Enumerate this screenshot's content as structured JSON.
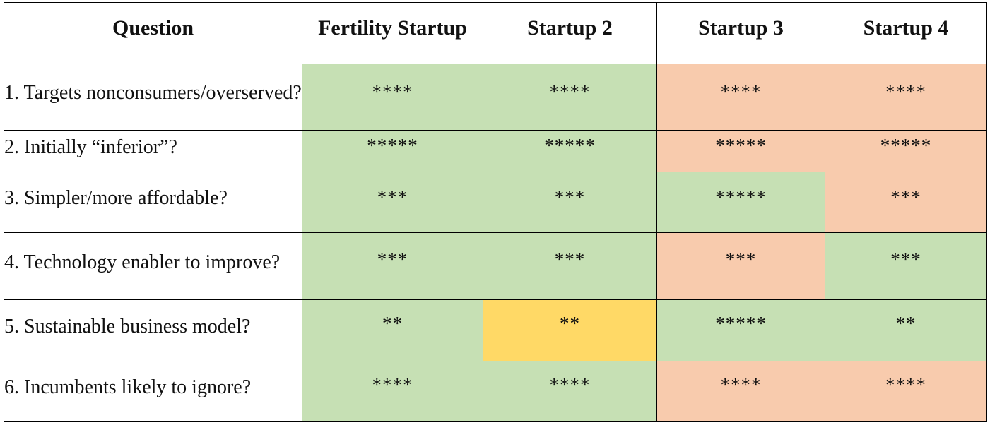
{
  "colors": {
    "good": "#c6e0b4",
    "bad": "#f8cbad",
    "neutral": "#ffd966"
  },
  "columns": [
    "Question",
    "Fertility Startup",
    "Startup 2",
    "Startup 3",
    "Startup 4"
  ],
  "rows": [
    {
      "question": "1. Targets nonconsumers/overserved?",
      "ratings": [
        {
          "stars": "****",
          "status": "good"
        },
        {
          "stars": "****",
          "status": "good"
        },
        {
          "stars": "****",
          "status": "bad"
        },
        {
          "stars": "****",
          "status": "bad"
        }
      ]
    },
    {
      "question": "2. Initially “inferior”?",
      "ratings": [
        {
          "stars": "*****",
          "status": "good"
        },
        {
          "stars": "*****",
          "status": "good"
        },
        {
          "stars": "*****",
          "status": "bad"
        },
        {
          "stars": "*****",
          "status": "bad"
        }
      ]
    },
    {
      "question": "3. Simpler/more affordable?",
      "ratings": [
        {
          "stars": "***",
          "status": "good"
        },
        {
          "stars": "***",
          "status": "good"
        },
        {
          "stars": "*****",
          "status": "good"
        },
        {
          "stars": "***",
          "status": "bad"
        }
      ]
    },
    {
      "question": "4. Technology enabler to improve?",
      "ratings": [
        {
          "stars": "***",
          "status": "good"
        },
        {
          "stars": "***",
          "status": "good"
        },
        {
          "stars": "***",
          "status": "bad"
        },
        {
          "stars": "***",
          "status": "good"
        }
      ]
    },
    {
      "question": "5. Sustainable business model?",
      "ratings": [
        {
          "stars": "**",
          "status": "good"
        },
        {
          "stars": "**",
          "status": "neutral"
        },
        {
          "stars": "*****",
          "status": "good"
        },
        {
          "stars": "**",
          "status": "good"
        }
      ]
    },
    {
      "question": "6. Incumbents likely to ignore?",
      "ratings": [
        {
          "stars": "****",
          "status": "good"
        },
        {
          "stars": "****",
          "status": "good"
        },
        {
          "stars": "****",
          "status": "bad"
        },
        {
          "stars": "****",
          "status": "bad"
        }
      ]
    }
  ]
}
